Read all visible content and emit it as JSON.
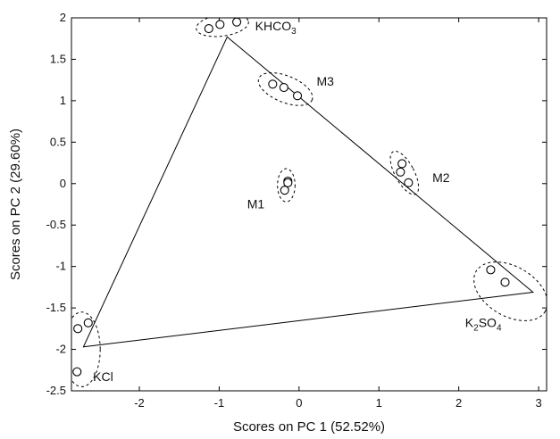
{
  "chart_data": {
    "type": "scatter",
    "title": "",
    "xlabel": "Scores on PC 1 (52.52%)",
    "ylabel": "Scores on PC 2 (29.60%)",
    "xlim": [
      -2.85,
      3.1
    ],
    "ylim": [
      -2.5,
      2
    ],
    "xticks": [
      -2,
      -1,
      0,
      1,
      2,
      3
    ],
    "yticks": [
      -2.5,
      -2,
      -1.5,
      -1,
      -0.5,
      0,
      0.5,
      1,
      1.5,
      2
    ],
    "grid": false,
    "legend": "none",
    "colors": {
      "axis": "#000000",
      "marker": "#000000",
      "ellipse": "#000000"
    },
    "triangle": [
      {
        "x": -0.9,
        "y": 1.77
      },
      {
        "x": 2.93,
        "y": -1.31
      },
      {
        "x": -2.7,
        "y": -1.97
      }
    ],
    "groups": [
      {
        "label": "KHCO",
        "sub": "3",
        "sub_pos": "end",
        "points": [
          {
            "x": -1.13,
            "y": 1.87
          },
          {
            "x": -0.99,
            "y": 1.92
          },
          {
            "x": -0.78,
            "y": 1.95
          }
        ],
        "ellipse": {
          "cx": -0.96,
          "cy": 1.91,
          "rx": 0.33,
          "ry": 0.13,
          "rot": -8
        },
        "label_at": {
          "x": -0.55,
          "y": 1.85
        }
      },
      {
        "label": "M3",
        "sub": "",
        "sub_pos": "end",
        "points": [
          {
            "x": -0.33,
            "y": 1.2
          },
          {
            "x": -0.19,
            "y": 1.16
          },
          {
            "x": -0.02,
            "y": 1.06
          }
        ],
        "ellipse": {
          "cx": -0.17,
          "cy": 1.14,
          "rx": 0.36,
          "ry": 0.16,
          "rot": 22
        },
        "label_at": {
          "x": 0.22,
          "y": 1.18
        }
      },
      {
        "label": "M1",
        "sub": "",
        "sub_pos": "end",
        "points": [
          {
            "x": -0.14,
            "y": 0.03
          },
          {
            "x": -0.14,
            "y": 0.01
          },
          {
            "x": -0.18,
            "y": -0.08
          }
        ],
        "ellipse": {
          "cx": -0.16,
          "cy": -0.02,
          "rx": 0.11,
          "ry": 0.2,
          "rot": 0
        },
        "label_at": {
          "x": -0.65,
          "y": -0.3
        }
      },
      {
        "label": "M2",
        "sub": "",
        "sub_pos": "end",
        "points": [
          {
            "x": 1.29,
            "y": 0.24
          },
          {
            "x": 1.27,
            "y": 0.14
          },
          {
            "x": 1.37,
            "y": 0.01
          }
        ],
        "ellipse": {
          "cx": 1.32,
          "cy": 0.13,
          "rx": 0.12,
          "ry": 0.29,
          "rot": -28
        },
        "label_at": {
          "x": 1.67,
          "y": 0.02
        }
      },
      {
        "label": "K",
        "sub": "2",
        "sub_pos": "after_first",
        "label_tail": "SO",
        "sub2": "4",
        "points": [
          {
            "x": 2.4,
            "y": -1.04
          },
          {
            "x": 2.58,
            "y": -1.19
          }
        ],
        "ellipse": {
          "cx": 2.65,
          "cy": -1.3,
          "rx": 0.5,
          "ry": 0.3,
          "rot": 30
        },
        "label_at": {
          "x": 2.08,
          "y": -1.73
        }
      },
      {
        "label": "KCl",
        "sub": "",
        "sub_pos": "end",
        "points": [
          {
            "x": -2.64,
            "y": -1.68
          },
          {
            "x": -2.77,
            "y": -1.75
          },
          {
            "x": -2.78,
            "y": -2.27
          }
        ],
        "ellipse": {
          "cx": -2.72,
          "cy": -2.0,
          "rx": 0.23,
          "ry": 0.45,
          "rot": 0
        },
        "label_at": {
          "x": -2.58,
          "y": -2.38
        }
      }
    ]
  }
}
